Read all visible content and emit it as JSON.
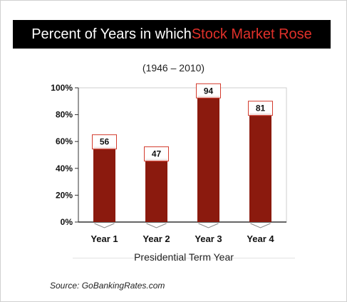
{
  "title": {
    "prefix": "Percent of Years in which ",
    "highlight": "Stock Market Rose"
  },
  "source": "Source: GoBankingRates.com",
  "colors": {
    "bar": "#8b1a0e",
    "title_bg": "#000000",
    "title_highlight": "#e0302a",
    "label_box": "#d33a2c"
  },
  "chart_data": {
    "type": "bar",
    "title": "Percent of Years in which Stock Market Rose",
    "subtitle": "(1946 – 2010)",
    "xlabel": "Presidential Term Year",
    "ylabel": "",
    "categories": [
      "Year 1",
      "Year 2",
      "Year 3",
      "Year 4"
    ],
    "values": [
      56,
      47,
      94,
      81
    ],
    "ylim": [
      0,
      100
    ],
    "yticks": [
      0,
      20,
      40,
      60,
      80,
      100
    ],
    "ytick_labels": [
      "0%",
      "20%",
      "40%",
      "60%",
      "80%",
      "100%"
    ],
    "grid": false,
    "data_labels": true
  }
}
